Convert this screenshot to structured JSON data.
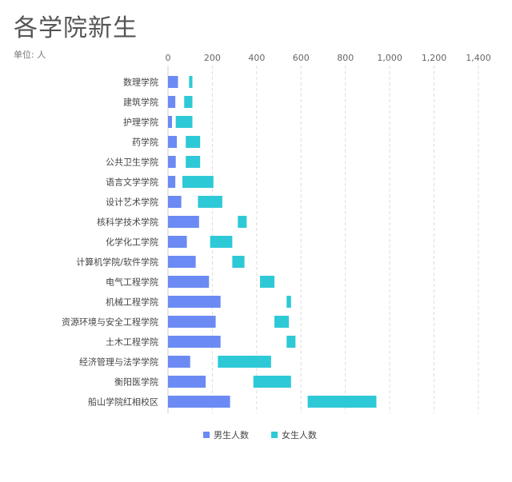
{
  "title": "各学院新生",
  "subtitle": "单位: 人",
  "colors": {
    "male": "#6b8af3",
    "female": "#2ec9d6"
  },
  "chart_data": {
    "type": "bar",
    "orientation": "horizontal",
    "stacked": false,
    "title": "各学院新生",
    "subtitle": "单位: 人",
    "xlim": [
      0,
      1400
    ],
    "xticks": [
      "0",
      "200",
      "400",
      "600",
      "800",
      "1,000",
      "1,200",
      "1,400"
    ],
    "grid": true,
    "legend_position": "bottom",
    "categories": [
      "数理学院",
      "建筑学院",
      "护理学院",
      "药学院",
      "公共卫生学院",
      "语言文学学院",
      "设计艺术学院",
      "核科学技术学院",
      "化学化工学院",
      "计算机学院/软件学院",
      "电气工程学院",
      "机械工程学院",
      "资源环境与安全工程学院",
      "土木工程学院",
      "经济管理与法学学院",
      "衡阳医学院",
      "船山学院红相校区"
    ],
    "series": [
      {
        "name": "男生人数",
        "ranges": [
          [
            0,
            45
          ],
          [
            0,
            33
          ],
          [
            0,
            18
          ],
          [
            0,
            40
          ],
          [
            0,
            35
          ],
          [
            0,
            33
          ],
          [
            0,
            60
          ],
          [
            0,
            140
          ],
          [
            0,
            85
          ],
          [
            0,
            125
          ],
          [
            0,
            185
          ],
          [
            0,
            237
          ],
          [
            0,
            215
          ],
          [
            0,
            237
          ],
          [
            0,
            100
          ],
          [
            0,
            170
          ],
          [
            0,
            280
          ]
        ]
      },
      {
        "name": "女生人数",
        "ranges": [
          [
            95,
            110
          ],
          [
            73,
            110
          ],
          [
            35,
            110
          ],
          [
            80,
            145
          ],
          [
            80,
            145
          ],
          [
            65,
            205
          ],
          [
            135,
            245
          ],
          [
            315,
            355
          ],
          [
            190,
            290
          ],
          [
            290,
            345
          ],
          [
            415,
            480
          ],
          [
            535,
            555
          ],
          [
            480,
            545
          ],
          [
            535,
            575
          ],
          [
            225,
            465
          ],
          [
            385,
            555
          ],
          [
            630,
            940
          ]
        ]
      }
    ]
  }
}
